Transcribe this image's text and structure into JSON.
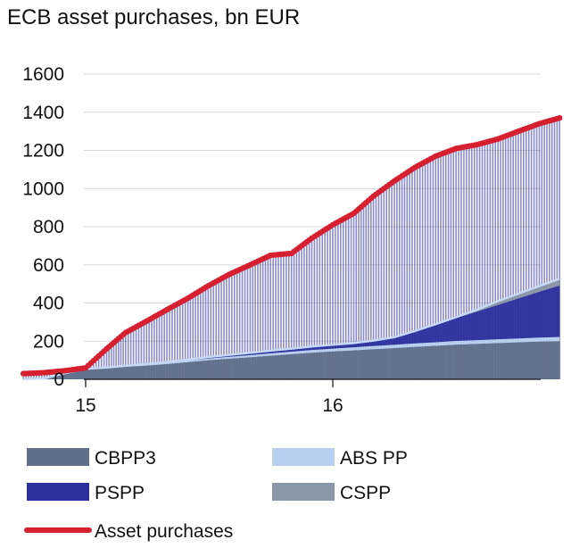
{
  "chart_data": {
    "type": "area",
    "title": "ECB asset purchases, bn EUR",
    "ylim": [
      0,
      1600
    ],
    "yticks": [
      0,
      200,
      400,
      600,
      800,
      1000,
      1200,
      1400,
      1600
    ],
    "xticks": [
      {
        "label": "15",
        "date": "2015-01-01"
      },
      {
        "label": "16",
        "date": "2016-01-01"
      }
    ],
    "x": [
      "2014-10-01",
      "2014-11-01",
      "2014-12-01",
      "2015-01-01",
      "2015-02-01",
      "2015-03-01",
      "2015-04-01",
      "2015-05-01",
      "2015-06-01",
      "2015-07-01",
      "2015-08-01",
      "2015-09-01",
      "2015-10-01",
      "2015-11-01",
      "2015-12-01",
      "2016-01-01",
      "2016-02-01",
      "2016-03-01",
      "2016-04-01",
      "2016-05-01",
      "2016-06-01",
      "2016-07-01",
      "2016-08-01",
      "2016-09-01",
      "2016-10-01",
      "2016-11-01",
      "2016-12-01"
    ],
    "series": [
      {
        "name": "CBPP3",
        "color": "#5f6f8a",
        "values": [
          1,
          4,
          30,
          52,
          58,
          66,
          72,
          80,
          90,
          100,
          108,
          116,
          124,
          132,
          140,
          146,
          152,
          158,
          164,
          170,
          176,
          182,
          186,
          190,
          194,
          198,
          200
        ]
      },
      {
        "name": "ABS PP",
        "color": "#b8cff0",
        "values": [
          0,
          1,
          2,
          3,
          4,
          5,
          6,
          7,
          8,
          9,
          10,
          11,
          12,
          13,
          14,
          15,
          16,
          17,
          17,
          18,
          18,
          19,
          19,
          20,
          20,
          21,
          22
        ]
      },
      {
        "name": "PSPP",
        "color": "#2c2f9e",
        "values": [
          0,
          0,
          0,
          0,
          0,
          0,
          2,
          3,
          5,
          8,
          10,
          12,
          14,
          16,
          18,
          20,
          22,
          28,
          40,
          65,
          95,
          120,
          150,
          180,
          210,
          240,
          270
        ]
      },
      {
        "name": "CSPP",
        "color": "#8a97a8",
        "values": [
          0,
          0,
          0,
          0,
          0,
          0,
          0,
          0,
          0,
          0,
          0,
          0,
          0,
          0,
          0,
          0,
          0,
          0,
          0,
          0,
          0,
          5,
          10,
          20,
          25,
          30,
          35
        ]
      }
    ],
    "line": {
      "name": "Asset purchases",
      "color": "#d6202f",
      "values": [
        30,
        35,
        45,
        60,
        160,
        245,
        305,
        365,
        425,
        490,
        550,
        600,
        650,
        660,
        740,
        810,
        870,
        960,
        1040,
        1110,
        1170,
        1210,
        1230,
        1260,
        1300,
        1340,
        1370
      ]
    },
    "legend": [
      {
        "name": "CBPP3",
        "color": "#5f6f8a",
        "kind": "box"
      },
      {
        "name": "ABS PP",
        "color": "#b8cff0",
        "kind": "box"
      },
      {
        "name": "PSPP",
        "color": "#2c2f9e",
        "kind": "box"
      },
      {
        "name": "CSPP",
        "color": "#8a97a8",
        "kind": "box"
      },
      {
        "name": "Asset purchases",
        "color": "#d6202f",
        "kind": "line"
      }
    ]
  }
}
